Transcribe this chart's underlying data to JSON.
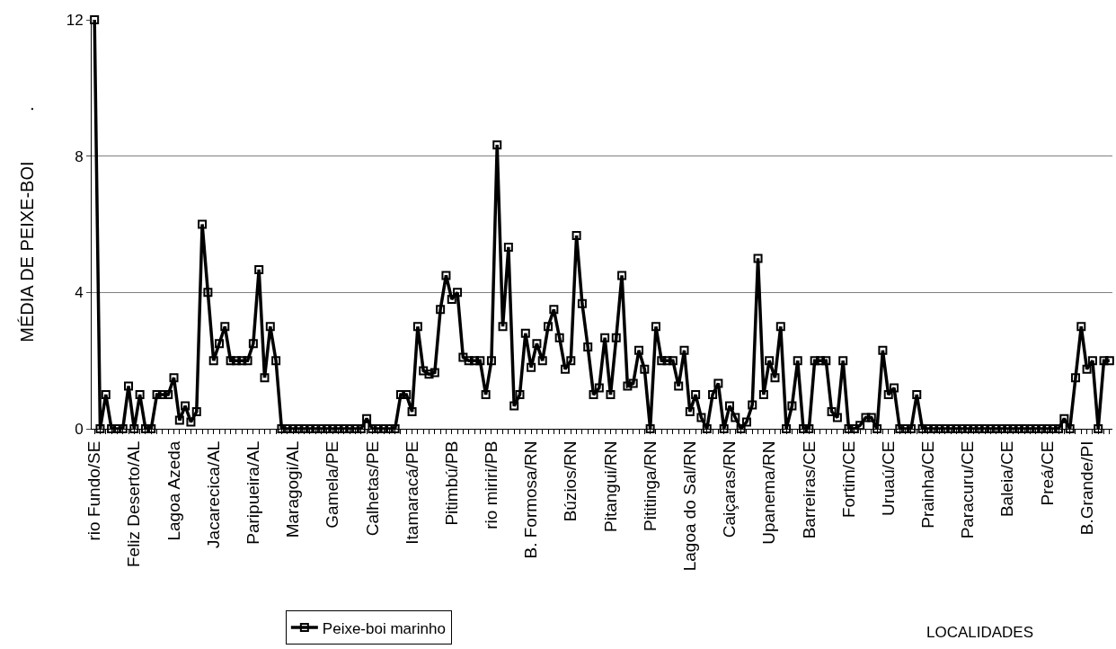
{
  "chart_data": {
    "type": "line",
    "xlabel": "LOCALIDADES",
    "ylabel": "MÉDIA DE PEIXE-BOI          .",
    "categories": [
      "rio Fundo/SE",
      null,
      null,
      null,
      null,
      null,
      null,
      "Feliz Deserto/AL",
      null,
      null,
      null,
      null,
      null,
      null,
      "Lagoa Azeda",
      null,
      null,
      null,
      null,
      null,
      null,
      "Jacarecica/AL",
      null,
      null,
      null,
      null,
      null,
      null,
      "Paripueira/AL",
      null,
      null,
      null,
      null,
      null,
      null,
      "Maragogi/AL",
      null,
      null,
      null,
      null,
      null,
      null,
      "Gamela/PE",
      null,
      null,
      null,
      null,
      null,
      null,
      "Calhetas/PE",
      null,
      null,
      null,
      null,
      null,
      null,
      "Itamaracá/PE",
      null,
      null,
      null,
      null,
      null,
      null,
      "Pitimbú/PB",
      null,
      null,
      null,
      null,
      null,
      null,
      "rio miriri/PB",
      null,
      null,
      null,
      null,
      null,
      null,
      "B. Formosa/RN",
      null,
      null,
      null,
      null,
      null,
      null,
      "Búzios/RN",
      null,
      null,
      null,
      null,
      null,
      null,
      "Pitangui/RN",
      null,
      null,
      null,
      null,
      null,
      null,
      "Pititinga/RN",
      null,
      null,
      null,
      null,
      null,
      null,
      "Lagoa do Sal/RN",
      null,
      null,
      null,
      null,
      null,
      null,
      "Caiçaras/RN",
      null,
      null,
      null,
      null,
      null,
      null,
      "Upanema/RN",
      null,
      null,
      null,
      null,
      null,
      null,
      "Barreiras/CE",
      null,
      null,
      null,
      null,
      null,
      null,
      "Fortim/CE",
      null,
      null,
      null,
      null,
      null,
      null,
      "Uruaú/CE",
      null,
      null,
      null,
      null,
      null,
      null,
      "Prainha/CE",
      null,
      null,
      null,
      null,
      null,
      null,
      "Paracuru/CE",
      null,
      null,
      null,
      null,
      null,
      null,
      "Baleia/CE",
      null,
      null,
      null,
      null,
      null,
      null,
      "Preá/CE",
      null,
      null,
      null,
      null,
      null,
      null,
      "B.Grande/PI",
      null,
      null,
      null,
      null
    ],
    "series": [
      {
        "name": "Peixe-boi marinho",
        "color": "#000000",
        "values": [
          12,
          0,
          1,
          0,
          0,
          0,
          1.25,
          0,
          1,
          0,
          0,
          1,
          1,
          1,
          1.5,
          0.25,
          0.67,
          0.2,
          0.5,
          6,
          4,
          2,
          2.5,
          3,
          2,
          2,
          2,
          2,
          2.5,
          4.67,
          1.5,
          3,
          2,
          0,
          0,
          0,
          0,
          0,
          0,
          0,
          0,
          0,
          0,
          0,
          0,
          0,
          0,
          0,
          0.3,
          0,
          0,
          0,
          0,
          0,
          1,
          1,
          0.5,
          3,
          1.7,
          1.6,
          1.65,
          3.5,
          4.5,
          3.8,
          4,
          2.1,
          2,
          2,
          2,
          1,
          2,
          8.33,
          3,
          5.33,
          0.67,
          1,
          2.8,
          1.8,
          2.5,
          2,
          3,
          3.5,
          2.67,
          1.75,
          2,
          5.67,
          3.67,
          2.4,
          1,
          1.2,
          2.67,
          1,
          2.67,
          4.5,
          1.25,
          1.33,
          2.3,
          1.75,
          0,
          3,
          2,
          2,
          2,
          1.25,
          2.3,
          0.5,
          1,
          0.33,
          0,
          1,
          1.33,
          0,
          0.67,
          0.33,
          0,
          0.2,
          0.7,
          5,
          1,
          2,
          1.5,
          3,
          0,
          0.67,
          2,
          0,
          0,
          2,
          2,
          2,
          0.5,
          0.33,
          2,
          0,
          0,
          0.1,
          0.33,
          0.33,
          0,
          2.3,
          1,
          1.2,
          0,
          0,
          0,
          1,
          0,
          0,
          0,
          0,
          0,
          0,
          0,
          0,
          0,
          0,
          0,
          0,
          0,
          0,
          0,
          0,
          0,
          0,
          0,
          0,
          0,
          0,
          0,
          0,
          0,
          0.3,
          0,
          1.5,
          3,
          1.75,
          2,
          0,
          2,
          2
        ]
      }
    ],
    "ylim": [
      0,
      12
    ],
    "yticks": [
      0,
      4,
      8,
      12
    ],
    "grid": "y",
    "legend": "bottom",
    "marker": "square",
    "line_style": "solid"
  }
}
